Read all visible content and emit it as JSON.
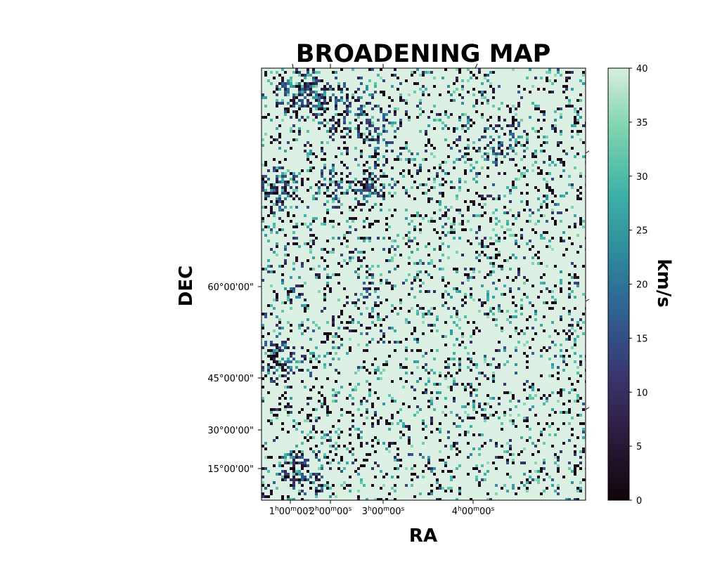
{
  "chart_data": {
    "type": "heatmap",
    "title": "BROADENING MAP",
    "xlabel": "RA",
    "ylabel": "DEC",
    "colorbar": {
      "label": "km/s",
      "range": [
        0,
        40
      ],
      "ticks": [
        0,
        5,
        10,
        15,
        20,
        25,
        30,
        35,
        40
      ],
      "colormap": "cubehelix-deep",
      "colors": [
        "#0f0508",
        "#2c1a3a",
        "#3a3570",
        "#2f5e91",
        "#2f8a9e",
        "#3fb3a6",
        "#7ed3ae",
        "#d6eedd"
      ]
    },
    "x_ticks": [
      "1h00m00s",
      "2h00m00s",
      "3h00m00s",
      "4h00m00s"
    ],
    "x_tick_parts": [
      {
        "h": "1",
        "m": "00",
        "s": "00"
      },
      {
        "h": "2",
        "m": "00",
        "s": "00"
      },
      {
        "h": "3",
        "m": "00",
        "s": "00"
      },
      {
        "h": "4",
        "m": "00",
        "s": "00"
      }
    ],
    "y_ticks": [
      "60°00'00\"",
      "45°00'00\"",
      "30°00'00\"",
      "15°00'00\""
    ],
    "grid": false,
    "background_value": 40,
    "dense_regions": [
      {
        "label": "upper-left filament",
        "value_range": [
          0,
          20
        ]
      },
      {
        "label": "left clump",
        "value_range": [
          0,
          18
        ]
      },
      {
        "label": "center-left clump",
        "value_range": [
          5,
          25
        ]
      },
      {
        "label": "lower-left clump",
        "value_range": [
          0,
          20
        ]
      }
    ]
  }
}
